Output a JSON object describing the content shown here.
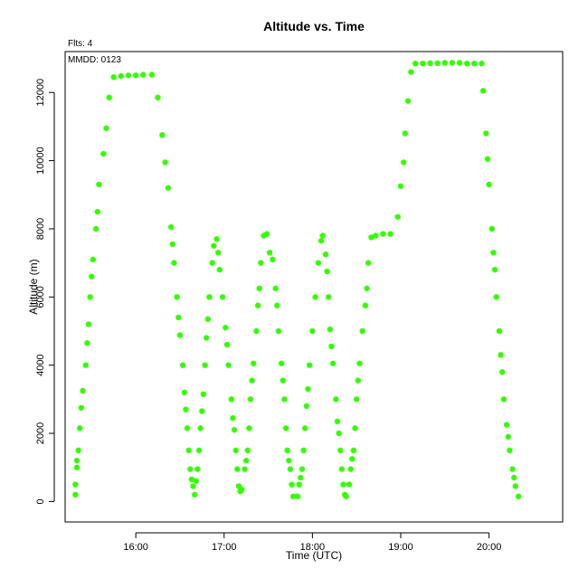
{
  "chart_data": {
    "type": "scatter",
    "title": "Altitude  vs. Time",
    "xlabel": "Time (UTC)",
    "ylabel": "Altitude (m)",
    "annotations": [
      "Flts: 4",
      "MMDD: 0123"
    ],
    "xlim": [
      "15:12",
      "20:50"
    ],
    "ylim": [
      -600,
      13200
    ],
    "x_ticks": [
      "16:00",
      "17:00",
      "18:00",
      "19:00",
      "20:00"
    ],
    "y_ticks": [
      0,
      2000,
      4000,
      6000,
      8000,
      10000,
      12000
    ],
    "grid": false,
    "series": [
      {
        "color": "#33ff00",
        "points": [
          [
            "15:19",
            200
          ],
          [
            "15:19",
            500
          ],
          [
            "15:20",
            1000
          ],
          [
            "15:20",
            1200
          ],
          [
            "15:21",
            1500
          ],
          [
            "15:22",
            2150
          ],
          [
            "15:23",
            2750
          ],
          [
            "15:24",
            3250
          ],
          [
            "15:26",
            4000
          ],
          [
            "15:27",
            4650
          ],
          [
            "15:28",
            5200
          ],
          [
            "15:29",
            6000
          ],
          [
            "15:30",
            6600
          ],
          [
            "15:31",
            7100
          ],
          [
            "15:33",
            8000
          ],
          [
            "15:34",
            8500
          ],
          [
            "15:35",
            9300
          ],
          [
            "15:38",
            10200
          ],
          [
            "15:40",
            10950
          ],
          [
            "15:42",
            11850
          ],
          [
            "15:45",
            12450
          ],
          [
            "15:50",
            12480
          ],
          [
            "15:55",
            12500
          ],
          [
            "16:00",
            12500
          ],
          [
            "16:05",
            12520
          ],
          [
            "16:11",
            12520
          ],
          [
            "16:15",
            11850
          ],
          [
            "16:18",
            10750
          ],
          [
            "16:20",
            9950
          ],
          [
            "16:22",
            9200
          ],
          [
            "16:24",
            8050
          ],
          [
            "16:25",
            7550
          ],
          [
            "16:26",
            7000
          ],
          [
            "16:28",
            6000
          ],
          [
            "16:29",
            5400
          ],
          [
            "16:30",
            4880
          ],
          [
            "16:32",
            4000
          ],
          [
            "16:33",
            3200
          ],
          [
            "16:34",
            2700
          ],
          [
            "16:35",
            2150
          ],
          [
            "16:36",
            1500
          ],
          [
            "16:37",
            950
          ],
          [
            "16:38",
            650
          ],
          [
            "16:39",
            450
          ],
          [
            "16:40",
            200
          ],
          [
            "16:41",
            600
          ],
          [
            "16:42",
            950
          ],
          [
            "16:43",
            1500
          ],
          [
            "16:44",
            2150
          ],
          [
            "16:45",
            2650
          ],
          [
            "16:46",
            3150
          ],
          [
            "16:47",
            4000
          ],
          [
            "16:48",
            4800
          ],
          [
            "16:49",
            5350
          ],
          [
            "16:50",
            6000
          ],
          [
            "16:52",
            7000
          ],
          [
            "16:53",
            7500
          ],
          [
            "16:55",
            7700
          ],
          [
            "16:56",
            7300
          ],
          [
            "16:57",
            6800
          ],
          [
            "16:59",
            6000
          ],
          [
            "17:01",
            5100
          ],
          [
            "17:02",
            4600
          ],
          [
            "17:03",
            4000
          ],
          [
            "17:05",
            3000
          ],
          [
            "17:06",
            2450
          ],
          [
            "17:07",
            2100
          ],
          [
            "17:08",
            1500
          ],
          [
            "17:09",
            950
          ],
          [
            "17:10",
            450
          ],
          [
            "17:11",
            300
          ],
          [
            "17:12",
            350
          ],
          [
            "17:14",
            950
          ],
          [
            "17:15",
            1200
          ],
          [
            "17:16",
            1500
          ],
          [
            "17:17",
            2150
          ],
          [
            "17:18",
            3000
          ],
          [
            "17:19",
            3550
          ],
          [
            "17:20",
            4050
          ],
          [
            "17:22",
            5000
          ],
          [
            "17:23",
            5750
          ],
          [
            "17:24",
            6250
          ],
          [
            "17:25",
            7000
          ],
          [
            "17:27",
            7800
          ],
          [
            "17:29",
            7850
          ],
          [
            "17:31",
            7300
          ],
          [
            "17:33",
            7100
          ],
          [
            "17:35",
            6250
          ],
          [
            "17:36",
            5750
          ],
          [
            "17:37",
            5000
          ],
          [
            "17:39",
            4050
          ],
          [
            "17:40",
            3550
          ],
          [
            "17:41",
            3000
          ],
          [
            "17:42",
            2150
          ],
          [
            "17:43",
            1500
          ],
          [
            "17:44",
            1200
          ],
          [
            "17:45",
            950
          ],
          [
            "17:46",
            500
          ],
          [
            "17:47",
            150
          ],
          [
            "17:50",
            150
          ],
          [
            "17:51",
            500
          ],
          [
            "17:52",
            700
          ],
          [
            "17:53",
            950
          ],
          [
            "17:54",
            1500
          ],
          [
            "17:55",
            2150
          ],
          [
            "17:56",
            2800
          ],
          [
            "17:57",
            3300
          ],
          [
            "17:58",
            4000
          ],
          [
            "18:00",
            5000
          ],
          [
            "18:02",
            6000
          ],
          [
            "18:04",
            7000
          ],
          [
            "18:06",
            7650
          ],
          [
            "18:07",
            7800
          ],
          [
            "18:09",
            7250
          ],
          [
            "18:10",
            6750
          ],
          [
            "18:11",
            6000
          ],
          [
            "18:12",
            5050
          ],
          [
            "18:13",
            4550
          ],
          [
            "18:14",
            4050
          ],
          [
            "18:16",
            3000
          ],
          [
            "18:17",
            2350
          ],
          [
            "18:18",
            2000
          ],
          [
            "18:19",
            1500
          ],
          [
            "18:20",
            950
          ],
          [
            "18:21",
            500
          ],
          [
            "18:22",
            200
          ],
          [
            "18:23",
            150
          ],
          [
            "18:25",
            500
          ],
          [
            "18:26",
            950
          ],
          [
            "18:27",
            1250
          ],
          [
            "18:28",
            1500
          ],
          [
            "18:29",
            2150
          ],
          [
            "18:30",
            3000
          ],
          [
            "18:31",
            3550
          ],
          [
            "18:32",
            4050
          ],
          [
            "18:34",
            5000
          ],
          [
            "18:36",
            5750
          ],
          [
            "18:37",
            6250
          ],
          [
            "18:38",
            7000
          ],
          [
            "18:40",
            7750
          ],
          [
            "18:43",
            7800
          ],
          [
            "18:48",
            7850
          ],
          [
            "18:53",
            7850
          ],
          [
            "18:58",
            8350
          ],
          [
            "19:00",
            9250
          ],
          [
            "19:02",
            9950
          ],
          [
            "19:03",
            10800
          ],
          [
            "19:05",
            11750
          ],
          [
            "19:07",
            12600
          ],
          [
            "19:10",
            12850
          ],
          [
            "19:15",
            12850
          ],
          [
            "19:20",
            12860
          ],
          [
            "19:25",
            12860
          ],
          [
            "19:30",
            12870
          ],
          [
            "19:35",
            12870
          ],
          [
            "19:40",
            12870
          ],
          [
            "19:45",
            12850
          ],
          [
            "19:50",
            12850
          ],
          [
            "19:55",
            12850
          ],
          [
            "19:56",
            12050
          ],
          [
            "19:58",
            10800
          ],
          [
            "19:59",
            10050
          ],
          [
            "20:00",
            9300
          ],
          [
            "20:02",
            8000
          ],
          [
            "20:03",
            7300
          ],
          [
            "20:04",
            6800
          ],
          [
            "20:05",
            6000
          ],
          [
            "20:07",
            5000
          ],
          [
            "20:08",
            4300
          ],
          [
            "20:09",
            3800
          ],
          [
            "20:10",
            3000
          ],
          [
            "20:12",
            2250
          ],
          [
            "20:13",
            1900
          ],
          [
            "20:14",
            1500
          ],
          [
            "20:16",
            950
          ],
          [
            "20:17",
            700
          ],
          [
            "20:18",
            450
          ],
          [
            "20:20",
            150
          ]
        ]
      }
    ]
  }
}
